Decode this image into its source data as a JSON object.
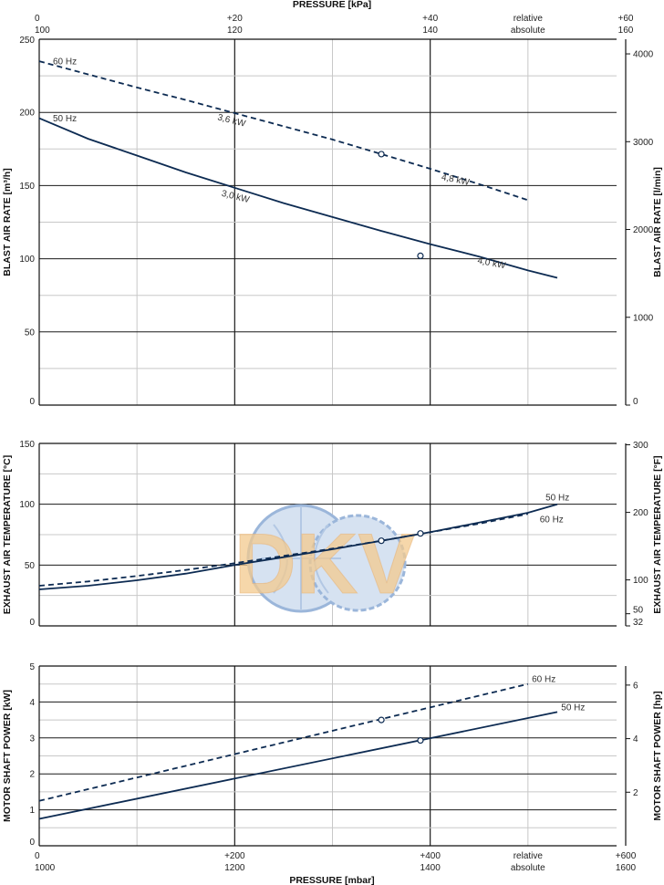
{
  "pressure_top": {
    "title": "PRESSURE  [kPa]",
    "relative_ticks": [
      "0",
      "+20",
      "+40",
      "+60"
    ],
    "absolute_ticks": [
      "100",
      "120",
      "140",
      "160"
    ],
    "relative_label": "relative",
    "absolute_label": "absolute"
  },
  "pressure_bottom": {
    "title": "PRESSURE  [mbar]",
    "relative_ticks": [
      "0",
      "+200",
      "+400",
      "+600"
    ],
    "absolute_ticks": [
      "1000",
      "1200",
      "1400",
      "1600"
    ],
    "relative_label": "relative",
    "absolute_label": "absolute"
  },
  "watermark": {
    "text": "DKV"
  },
  "colors": {
    "curve": "#0d2b52",
    "grid_major": "#1a1a1a",
    "grid_minor": "#c8c8c8",
    "watermark_blue": "#5b86c0",
    "watermark_orange": "#f3c98e"
  },
  "chart_data": [
    {
      "type": "line",
      "title": "",
      "xlabel": "PRESSURE  [mbar]",
      "ylabel": "BLAST AIR RATE  [m³/h]",
      "ylabel_right": "BLAST AIR RATE  [l/min]",
      "xlim": [
        0,
        600
      ],
      "ylim": [
        0,
        250
      ],
      "yticks": [
        "0",
        "50",
        "100",
        "150",
        "200",
        "250"
      ],
      "right_ticks": [
        {
          "label": "0",
          "value": 0
        },
        {
          "label": "1000",
          "value": 60
        },
        {
          "label": "2000",
          "value": 120
        },
        {
          "label": "3000",
          "value": 180
        },
        {
          "label": "4000",
          "value": 240
        }
      ],
      "series": [
        {
          "name": "60 Hz",
          "style": "dashed",
          "x": [
            0,
            50,
            100,
            150,
            200,
            250,
            300,
            350,
            400,
            450,
            500
          ],
          "y": [
            235,
            226,
            217,
            208.5,
            199.5,
            190.5,
            181.5,
            171.5,
            161.5,
            151,
            140
          ]
        },
        {
          "name": "50 Hz",
          "style": "solid",
          "x": [
            0,
            50,
            100,
            150,
            200,
            250,
            300,
            350,
            400,
            450,
            500,
            530
          ],
          "y": [
            196,
            182,
            170.5,
            159,
            148.5,
            138,
            128.5,
            119,
            110,
            101.5,
            92,
            87
          ]
        }
      ],
      "markers": [
        {
          "series": "60 Hz",
          "x": 350,
          "y": 171.5
        },
        {
          "series": "50 Hz",
          "x": 390,
          "y": 102
        }
      ],
      "annotations": [
        {
          "text": "60 Hz",
          "x": 14,
          "y": 233
        },
        {
          "text": "50 Hz",
          "x": 14,
          "y": 194
        },
        {
          "text": "3,6 kW",
          "x": 182,
          "y": 195
        },
        {
          "text": "3,0 kW",
          "x": 186,
          "y": 143
        },
        {
          "text": "4,8 kW",
          "x": 411,
          "y": 154
        },
        {
          "text": "4,0 kW",
          "x": 448,
          "y": 97
        }
      ]
    },
    {
      "type": "line",
      "title": "",
      "xlabel": "PRESSURE  [mbar]",
      "ylabel": "EXHAUST AIR TEMPERATURE  [°C]",
      "ylabel_right": "EXHAUST AIR TEMPERATURE  [°F]",
      "xlim": [
        0,
        600
      ],
      "ylim": [
        0,
        150
      ],
      "yticks": [
        "0",
        "50",
        "100",
        "150"
      ],
      "right_ticks": [
        {
          "label": "32",
          "value": 0
        },
        {
          "label": "50",
          "value": 10
        },
        {
          "label": "100",
          "value": 37.8
        },
        {
          "label": "200",
          "value": 93.3
        },
        {
          "label": "300",
          "value": 148.9
        }
      ],
      "series": [
        {
          "name": "50 Hz",
          "style": "solid",
          "x": [
            0,
            50,
            100,
            150,
            200,
            250,
            300,
            350,
            400,
            450,
            500,
            530
          ],
          "y": [
            30,
            33,
            37.5,
            43,
            50,
            56.5,
            63,
            70,
            77,
            85,
            93,
            100
          ]
        },
        {
          "name": "60 Hz",
          "style": "dashed",
          "x": [
            0,
            50,
            100,
            150,
            200,
            250,
            300,
            350,
            400,
            450,
            500
          ],
          "y": [
            33,
            36.5,
            41,
            46,
            51.5,
            57.5,
            63.5,
            70,
            77,
            84,
            92
          ]
        }
      ],
      "markers": [
        {
          "series": "60 Hz",
          "x": 350,
          "y": 70
        },
        {
          "series": "50 Hz",
          "x": 390,
          "y": 76
        }
      ],
      "annotations": [
        {
          "text": "50 Hz",
          "x": 518,
          "y": 103
        },
        {
          "text": "60 Hz",
          "x": 512,
          "y": 85
        }
      ]
    },
    {
      "type": "line",
      "title": "",
      "xlabel": "PRESSURE  [mbar]",
      "ylabel": "MOTOR SHAFT POWER  [kW]",
      "ylabel_right": "MOTOR SHAFT POWER  [hp]",
      "xlim": [
        0,
        600
      ],
      "ylim": [
        0,
        5
      ],
      "yticks": [
        "0",
        "1",
        "2",
        "3",
        "4",
        "5"
      ],
      "right_ticks": [
        {
          "label": "2",
          "value": 1.49
        },
        {
          "label": "4",
          "value": 2.98
        },
        {
          "label": "6",
          "value": 4.47
        }
      ],
      "series": [
        {
          "name": "60 Hz",
          "style": "dashed",
          "x": [
            0,
            500
          ],
          "y": [
            1.25,
            4.5
          ]
        },
        {
          "name": "50 Hz",
          "style": "solid",
          "x": [
            0,
            530
          ],
          "y": [
            0.75,
            3.72
          ]
        }
      ],
      "markers": [
        {
          "series": "60 Hz",
          "x": 350,
          "y": 3.5
        },
        {
          "series": "50 Hz",
          "x": 390,
          "y": 2.93
        }
      ],
      "annotations": [
        {
          "text": "60 Hz",
          "x": 504,
          "y": 4.55
        },
        {
          "text": "50 Hz",
          "x": 534,
          "y": 3.77
        }
      ]
    }
  ]
}
